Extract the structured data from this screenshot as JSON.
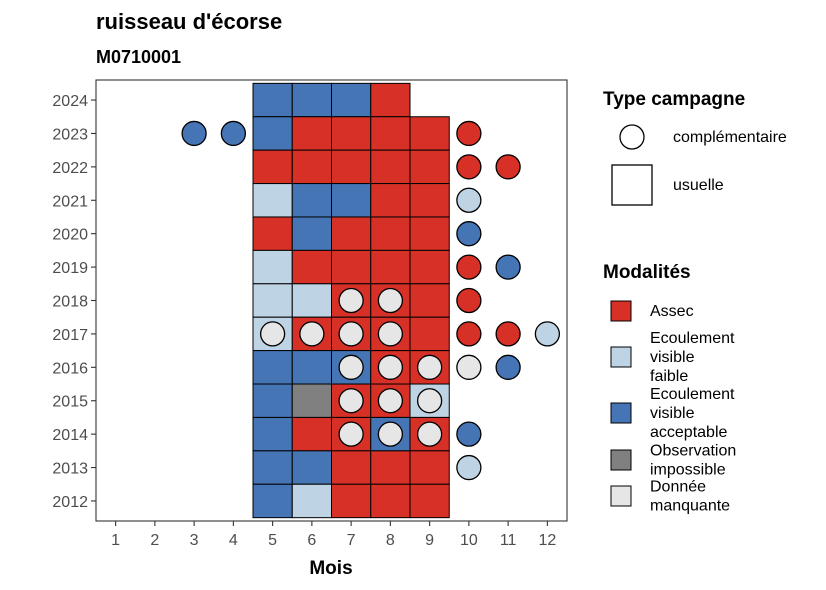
{
  "chart_data": {
    "type": "heatmap",
    "title": "ruisseau d'écorse",
    "subtitle": "M0710001",
    "xlabel": "Mois",
    "ylabel": "",
    "x_ticks": [
      1,
      2,
      3,
      4,
      5,
      6,
      7,
      8,
      9,
      10,
      11,
      12
    ],
    "y_ticks": [
      2012,
      2013,
      2014,
      2015,
      2016,
      2017,
      2018,
      2019,
      2020,
      2021,
      2022,
      2023,
      2024
    ],
    "xlim": [
      0.5,
      12.5
    ],
    "ylim": [
      2011.4,
      2024.6
    ],
    "grid": false,
    "legend_position": "right",
    "colors": {
      "Assec": "#d73027",
      "Ecoulement visible faible": "#bed3e3",
      "Ecoulement visible acceptable": "#4575b4",
      "Observation impossible": "#808080",
      "Donnée manquante": "#e6e6e6"
    },
    "legend_type": {
      "title": "Type campagne",
      "items": [
        {
          "label": "complémentaire",
          "shape": "circle"
        },
        {
          "label": "usuelle",
          "shape": "square"
        }
      ]
    },
    "legend_modalites": {
      "title": "Modalités",
      "items": [
        {
          "key": "Assec",
          "lines": [
            "Assec"
          ]
        },
        {
          "key": "Ecoulement visible faible",
          "lines": [
            "Ecoulement",
            "visible",
            "faible"
          ]
        },
        {
          "key": "Ecoulement visible acceptable",
          "lines": [
            "Ecoulement",
            "visible",
            "acceptable"
          ]
        },
        {
          "key": "Observation impossible",
          "lines": [
            "Observation",
            "impossible"
          ]
        },
        {
          "key": "Donnée manquante",
          "lines": [
            "Donnée",
            "manquante"
          ]
        }
      ]
    },
    "usuelle": [
      {
        "year": 2024,
        "month": 5,
        "value": "Ecoulement visible acceptable"
      },
      {
        "year": 2024,
        "month": 6,
        "value": "Ecoulement visible acceptable"
      },
      {
        "year": 2024,
        "month": 7,
        "value": "Ecoulement visible acceptable"
      },
      {
        "year": 2024,
        "month": 8,
        "value": "Assec"
      },
      {
        "year": 2023,
        "month": 5,
        "value": "Ecoulement visible acceptable"
      },
      {
        "year": 2023,
        "month": 6,
        "value": "Assec"
      },
      {
        "year": 2023,
        "month": 7,
        "value": "Assec"
      },
      {
        "year": 2023,
        "month": 8,
        "value": "Assec"
      },
      {
        "year": 2023,
        "month": 9,
        "value": "Assec"
      },
      {
        "year": 2022,
        "month": 5,
        "value": "Assec"
      },
      {
        "year": 2022,
        "month": 6,
        "value": "Assec"
      },
      {
        "year": 2022,
        "month": 7,
        "value": "Assec"
      },
      {
        "year": 2022,
        "month": 8,
        "value": "Assec"
      },
      {
        "year": 2022,
        "month": 9,
        "value": "Assec"
      },
      {
        "year": 2021,
        "month": 5,
        "value": "Ecoulement visible faible"
      },
      {
        "year": 2021,
        "month": 6,
        "value": "Ecoulement visible acceptable"
      },
      {
        "year": 2021,
        "month": 7,
        "value": "Ecoulement visible acceptable"
      },
      {
        "year": 2021,
        "month": 8,
        "value": "Assec"
      },
      {
        "year": 2021,
        "month": 9,
        "value": "Assec"
      },
      {
        "year": 2020,
        "month": 5,
        "value": "Assec"
      },
      {
        "year": 2020,
        "month": 6,
        "value": "Ecoulement visible acceptable"
      },
      {
        "year": 2020,
        "month": 7,
        "value": "Assec"
      },
      {
        "year": 2020,
        "month": 8,
        "value": "Assec"
      },
      {
        "year": 2020,
        "month": 9,
        "value": "Assec"
      },
      {
        "year": 2019,
        "month": 5,
        "value": "Ecoulement visible faible"
      },
      {
        "year": 2019,
        "month": 6,
        "value": "Assec"
      },
      {
        "year": 2019,
        "month": 7,
        "value": "Assec"
      },
      {
        "year": 2019,
        "month": 8,
        "value": "Assec"
      },
      {
        "year": 2019,
        "month": 9,
        "value": "Assec"
      },
      {
        "year": 2018,
        "month": 5,
        "value": "Ecoulement visible faible"
      },
      {
        "year": 2018,
        "month": 6,
        "value": "Ecoulement visible faible"
      },
      {
        "year": 2018,
        "month": 7,
        "value": "Assec"
      },
      {
        "year": 2018,
        "month": 8,
        "value": "Assec"
      },
      {
        "year": 2018,
        "month": 9,
        "value": "Assec"
      },
      {
        "year": 2017,
        "month": 5,
        "value": "Ecoulement visible faible"
      },
      {
        "year": 2017,
        "month": 6,
        "value": "Assec"
      },
      {
        "year": 2017,
        "month": 7,
        "value": "Assec"
      },
      {
        "year": 2017,
        "month": 8,
        "value": "Assec"
      },
      {
        "year": 2017,
        "month": 9,
        "value": "Assec"
      },
      {
        "year": 2016,
        "month": 5,
        "value": "Ecoulement visible acceptable"
      },
      {
        "year": 2016,
        "month": 6,
        "value": "Ecoulement visible acceptable"
      },
      {
        "year": 2016,
        "month": 7,
        "value": "Ecoulement visible acceptable"
      },
      {
        "year": 2016,
        "month": 8,
        "value": "Assec"
      },
      {
        "year": 2016,
        "month": 9,
        "value": "Assec"
      },
      {
        "year": 2015,
        "month": 5,
        "value": "Ecoulement visible acceptable"
      },
      {
        "year": 2015,
        "month": 6,
        "value": "Observation impossible"
      },
      {
        "year": 2015,
        "month": 7,
        "value": "Assec"
      },
      {
        "year": 2015,
        "month": 8,
        "value": "Assec"
      },
      {
        "year": 2015,
        "month": 9,
        "value": "Ecoulement visible faible"
      },
      {
        "year": 2014,
        "month": 5,
        "value": "Ecoulement visible acceptable"
      },
      {
        "year": 2014,
        "month": 6,
        "value": "Assec"
      },
      {
        "year": 2014,
        "month": 7,
        "value": "Assec"
      },
      {
        "year": 2014,
        "month": 8,
        "value": "Ecoulement visible acceptable"
      },
      {
        "year": 2014,
        "month": 9,
        "value": "Assec"
      },
      {
        "year": 2013,
        "month": 5,
        "value": "Ecoulement visible acceptable"
      },
      {
        "year": 2013,
        "month": 6,
        "value": "Ecoulement visible acceptable"
      },
      {
        "year": 2013,
        "month": 7,
        "value": "Assec"
      },
      {
        "year": 2013,
        "month": 8,
        "value": "Assec"
      },
      {
        "year": 2013,
        "month": 9,
        "value": "Assec"
      },
      {
        "year": 2012,
        "month": 5,
        "value": "Ecoulement visible acceptable"
      },
      {
        "year": 2012,
        "month": 6,
        "value": "Ecoulement visible faible"
      },
      {
        "year": 2012,
        "month": 7,
        "value": "Assec"
      },
      {
        "year": 2012,
        "month": 8,
        "value": "Assec"
      },
      {
        "year": 2012,
        "month": 9,
        "value": "Assec"
      }
    ],
    "complementaire": [
      {
        "year": 2023,
        "month": 3,
        "value": "Ecoulement visible acceptable"
      },
      {
        "year": 2023,
        "month": 4,
        "value": "Ecoulement visible acceptable"
      },
      {
        "year": 2023,
        "month": 10,
        "value": "Assec"
      },
      {
        "year": 2022,
        "month": 10,
        "value": "Assec"
      },
      {
        "year": 2022,
        "month": 11,
        "value": "Assec"
      },
      {
        "year": 2021,
        "month": 10,
        "value": "Ecoulement visible faible"
      },
      {
        "year": 2020,
        "month": 10,
        "value": "Ecoulement visible acceptable"
      },
      {
        "year": 2019,
        "month": 10,
        "value": "Assec"
      },
      {
        "year": 2019,
        "month": 11,
        "value": "Ecoulement visible acceptable"
      },
      {
        "year": 2018,
        "month": 7,
        "value": "Donnée manquante"
      },
      {
        "year": 2018,
        "month": 8,
        "value": "Donnée manquante"
      },
      {
        "year": 2018,
        "month": 10,
        "value": "Assec"
      },
      {
        "year": 2017,
        "month": 5,
        "value": "Donnée manquante"
      },
      {
        "year": 2017,
        "month": 6,
        "value": "Donnée manquante"
      },
      {
        "year": 2017,
        "month": 7,
        "value": "Donnée manquante"
      },
      {
        "year": 2017,
        "month": 8,
        "value": "Donnée manquante"
      },
      {
        "year": 2017,
        "month": 10,
        "value": "Assec"
      },
      {
        "year": 2017,
        "month": 11,
        "value": "Assec"
      },
      {
        "year": 2017,
        "month": 12,
        "value": "Ecoulement visible faible"
      },
      {
        "year": 2016,
        "month": 7,
        "value": "Donnée manquante"
      },
      {
        "year": 2016,
        "month": 8,
        "value": "Donnée manquante"
      },
      {
        "year": 2016,
        "month": 9,
        "value": "Donnée manquante"
      },
      {
        "year": 2016,
        "month": 10,
        "value": "Donnée manquante"
      },
      {
        "year": 2016,
        "month": 11,
        "value": "Ecoulement visible acceptable"
      },
      {
        "year": 2015,
        "month": 7,
        "value": "Donnée manquante"
      },
      {
        "year": 2015,
        "month": 8,
        "value": "Donnée manquante"
      },
      {
        "year": 2015,
        "month": 9,
        "value": "Donnée manquante"
      },
      {
        "year": 2014,
        "month": 7,
        "value": "Donnée manquante"
      },
      {
        "year": 2014,
        "month": 8,
        "value": "Donnée manquante"
      },
      {
        "year": 2014,
        "month": 9,
        "value": "Donnée manquante"
      },
      {
        "year": 2014,
        "month": 10,
        "value": "Ecoulement visible acceptable"
      },
      {
        "year": 2013,
        "month": 10,
        "value": "Ecoulement visible faible"
      }
    ]
  }
}
